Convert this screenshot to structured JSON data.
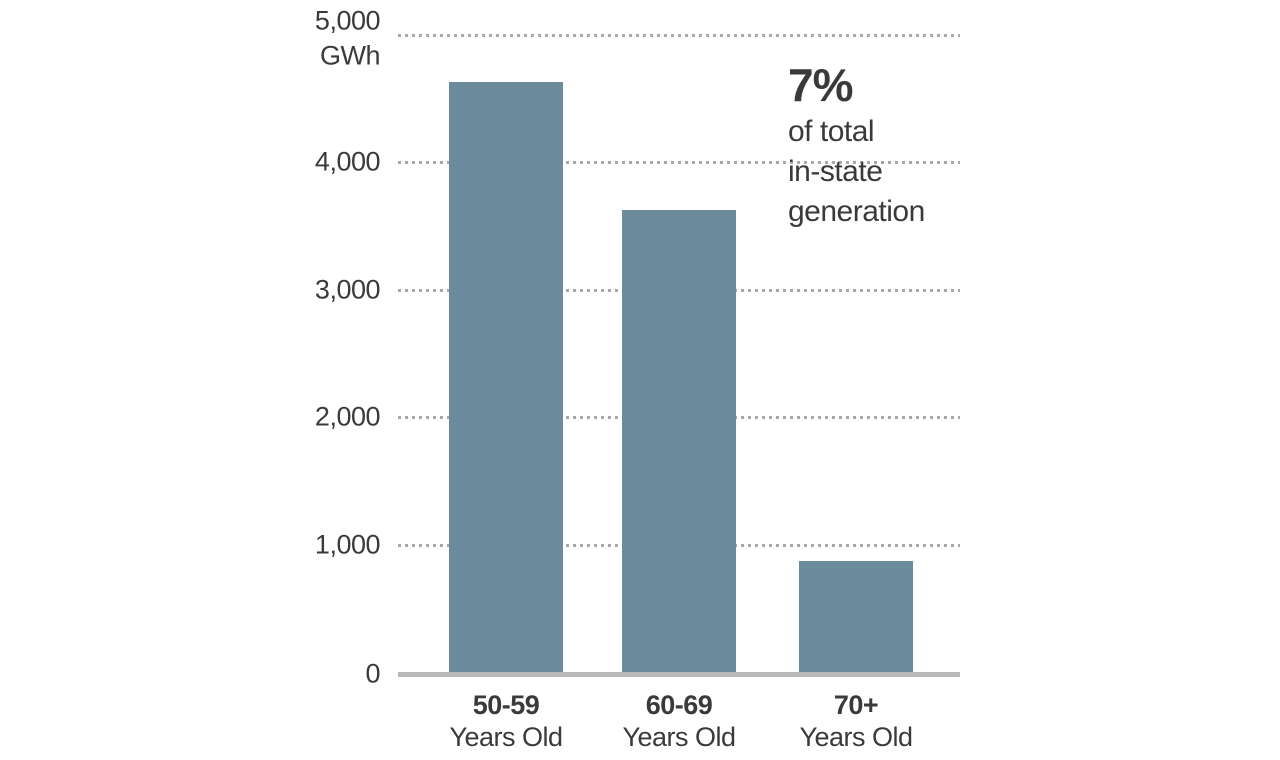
{
  "chart_data": {
    "type": "bar",
    "title": "",
    "unit_label": "GWh",
    "categories": [
      {
        "range": "50-59",
        "suffix": "Years Old"
      },
      {
        "range": "60-69",
        "suffix": "Years Old"
      },
      {
        "range": "70+",
        "suffix": "Years Old"
      }
    ],
    "values": [
      4630,
      3630,
      870
    ],
    "ylim": [
      0,
      5000
    ],
    "yticks": [
      {
        "value": 5000,
        "label": "5,000"
      },
      {
        "value": 4000,
        "label": "4,000"
      },
      {
        "value": 3000,
        "label": "3,000"
      },
      {
        "value": 2000,
        "label": "2,000"
      },
      {
        "value": 1000,
        "label": "1,000"
      },
      {
        "value": 0,
        "label": "0"
      }
    ],
    "grid": "horizontal-dotted",
    "legend": "none",
    "annotation": {
      "headline": "7%",
      "lines": [
        "of total",
        "in-state",
        "generation"
      ]
    },
    "colors": {
      "bar": "#6c8c9d",
      "text": "#3a3a3a",
      "axis": "#b9b9b9",
      "grid": "#a8a8a8"
    }
  }
}
